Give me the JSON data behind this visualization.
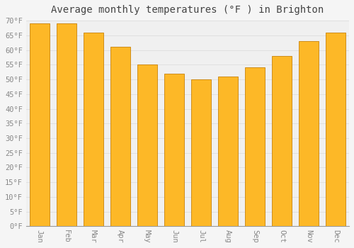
{
  "title": "Average monthly temperatures (°F ) in Brighton",
  "months": [
    "Jan",
    "Feb",
    "Mar",
    "Apr",
    "May",
    "Jun",
    "Jul",
    "Aug",
    "Sep",
    "Oct",
    "Nov",
    "Dec"
  ],
  "values": [
    69,
    69,
    66,
    61,
    55,
    52,
    50,
    51,
    54,
    58,
    63,
    66
  ],
  "bar_color": "#FDB827",
  "bar_edge_color": "#C8820A",
  "background_color": "#F5F5F5",
  "plot_bg_color": "#F0F0F0",
  "grid_color": "#DDDDDD",
  "ylim": [
    0,
    70
  ],
  "ytick_step": 5,
  "title_fontsize": 10,
  "tick_fontsize": 7.5,
  "tick_color": "#888888",
  "title_color": "#444444"
}
